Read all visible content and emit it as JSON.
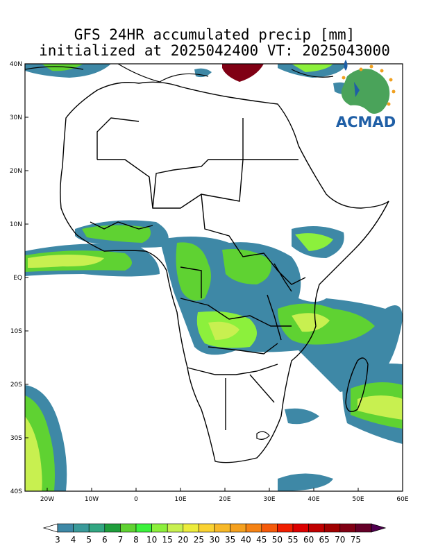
{
  "title": {
    "line1": "GFS 24HR accumulated precip [mm]",
    "line2": "initialized at 2025042400 VT: 2025043000"
  },
  "map": {
    "lon_range": [
      -25,
      60
    ],
    "lat_range": [
      -40,
      40
    ],
    "lat_ticks": [
      "40N",
      "30N",
      "20N",
      "10N",
      "EQ",
      "10S",
      "20S",
      "30S",
      "40S"
    ],
    "lon_ticks": [
      "20W",
      "10W",
      "0",
      "10E",
      "20E",
      "30E",
      "40E",
      "50E",
      "60E"
    ]
  },
  "logo": {
    "text": "ACMAD"
  },
  "colorbar": {
    "levels": [
      "3",
      "4",
      "5",
      "6",
      "7",
      "8",
      "10",
      "15",
      "20",
      "25",
      "30",
      "35",
      "40",
      "45",
      "50",
      "55",
      "60",
      "65",
      "70",
      "75"
    ],
    "colors": [
      "#ffffff",
      "#3e88a6",
      "#3a9a9a",
      "#32a682",
      "#1f9e3c",
      "#5fd232",
      "#3cf23c",
      "#8cf03c",
      "#c8f050",
      "#ecec3c",
      "#fad232",
      "#f7b828",
      "#f5a01e",
      "#f58214",
      "#f55a0a",
      "#f01e00",
      "#dc0000",
      "#c00000",
      "#a00000",
      "#800014",
      "#640028",
      "#500050"
    ]
  }
}
